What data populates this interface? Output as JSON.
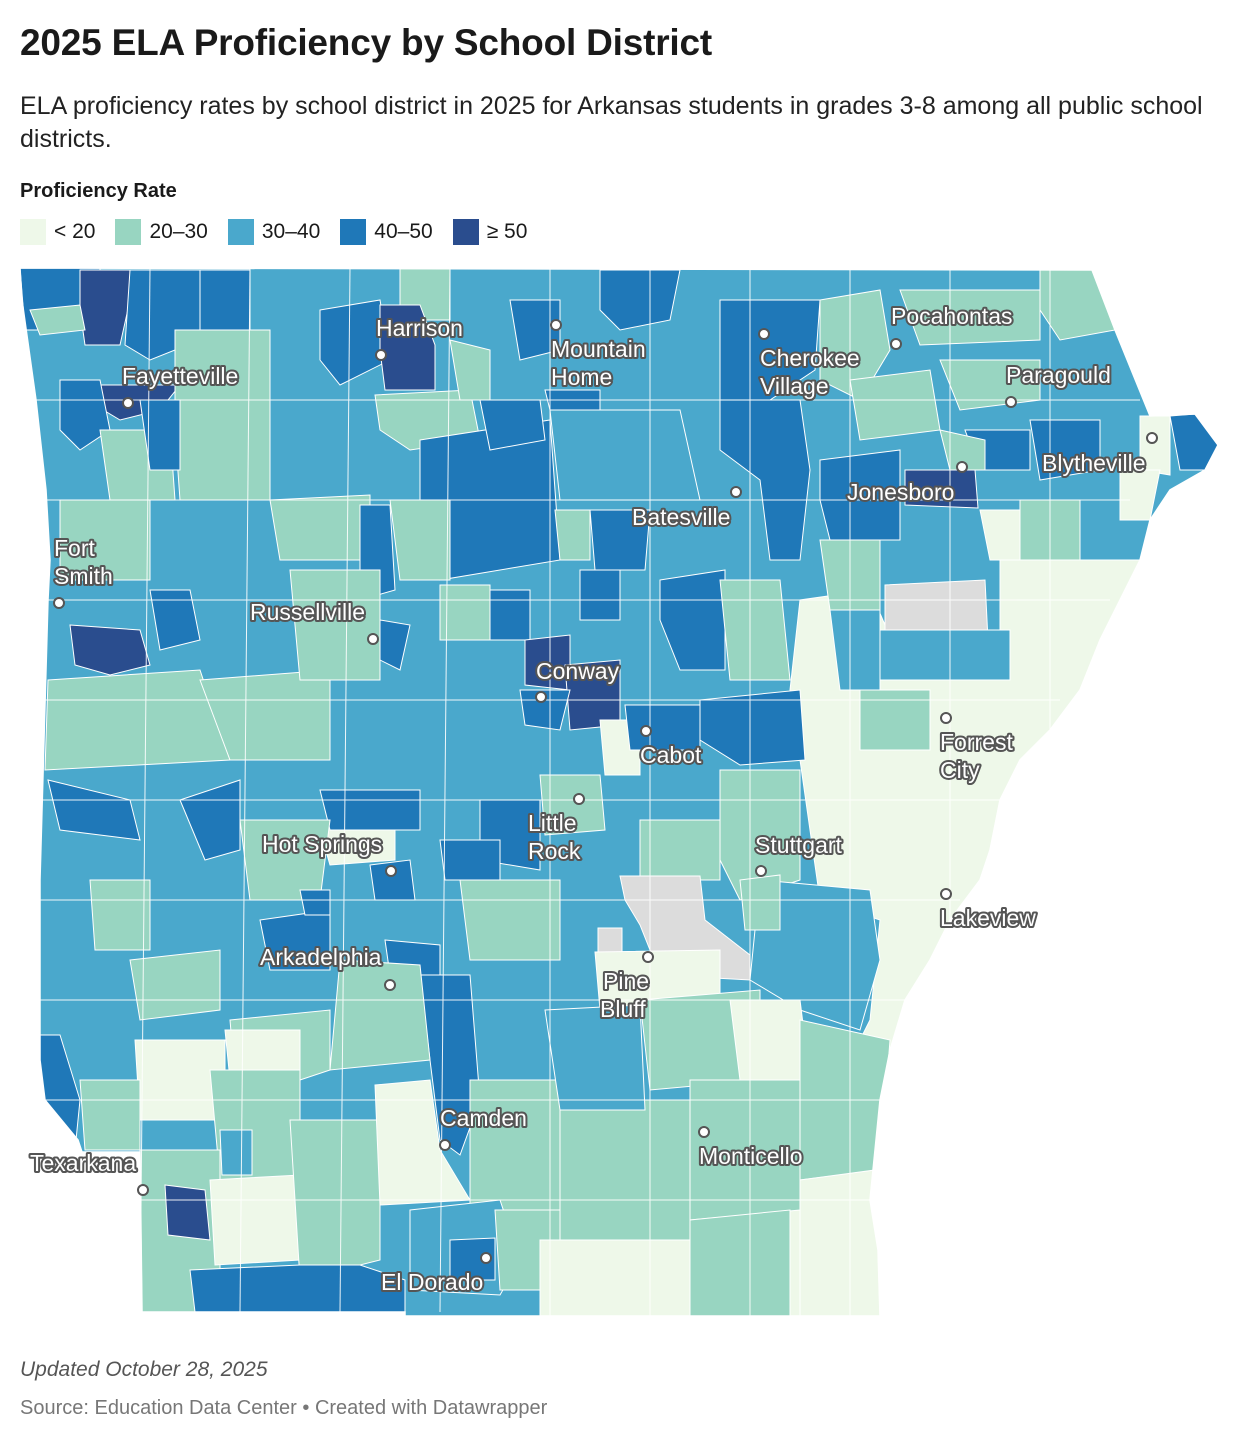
{
  "header": {
    "title": "2025 ELA Proficiency by School District",
    "subtitle": "ELA proficiency rates by school district in 2025 for Arkansas students in grades 3-8 among all public school districts."
  },
  "legend": {
    "title": "Proficiency Rate",
    "items": [
      {
        "label": "< 20",
        "color": "#eef8e9"
      },
      {
        "label": "20–30",
        "color": "#98d5c1"
      },
      {
        "label": "30–40",
        "color": "#4aa8cc"
      },
      {
        "label": "40–50",
        "color": "#1f78b8"
      },
      {
        "label": "≥ 50",
        "color": "#2a4d8e"
      }
    ],
    "no_data_color": "#dcdcdc"
  },
  "map": {
    "cities": [
      {
        "id": "harrison",
        "lines": [
          "Harrison"
        ]
      },
      {
        "id": "fayetteville",
        "lines": [
          "Fayetteville"
        ]
      },
      {
        "id": "mountain-home",
        "lines": [
          "Mountain",
          "Home"
        ]
      },
      {
        "id": "cherokee-village",
        "lines": [
          "Cherokee",
          "Village"
        ]
      },
      {
        "id": "pocahontas",
        "lines": [
          "Pocahontas"
        ]
      },
      {
        "id": "paragould",
        "lines": [
          "Paragould"
        ]
      },
      {
        "id": "blytheville",
        "lines": [
          "Blytheville"
        ]
      },
      {
        "id": "jonesboro",
        "lines": [
          "Jonesboro"
        ]
      },
      {
        "id": "batesville",
        "lines": [
          "Batesville"
        ]
      },
      {
        "id": "fort-smith",
        "lines": [
          "Fort",
          "Smith"
        ]
      },
      {
        "id": "russellville",
        "lines": [
          "Russellville"
        ]
      },
      {
        "id": "conway",
        "lines": [
          "Conway"
        ]
      },
      {
        "id": "cabot",
        "lines": [
          "Cabot"
        ]
      },
      {
        "id": "forrest-city",
        "lines": [
          "Forrest",
          "City"
        ]
      },
      {
        "id": "little-rock",
        "lines": [
          "Little",
          "Rock"
        ]
      },
      {
        "id": "hot-springs",
        "lines": [
          "Hot Springs"
        ]
      },
      {
        "id": "stuttgart",
        "lines": [
          "Stuttgart"
        ]
      },
      {
        "id": "lakeview",
        "lines": [
          "Lakeview"
        ]
      },
      {
        "id": "arkadelphia",
        "lines": [
          "Arkadelphia"
        ]
      },
      {
        "id": "pine-bluff",
        "lines": [
          "Pine",
          "Bluff"
        ]
      },
      {
        "id": "camden",
        "lines": [
          "Camden"
        ]
      },
      {
        "id": "monticello",
        "lines": [
          "Monticello"
        ]
      },
      {
        "id": "texarkana",
        "lines": [
          "Texarkana"
        ]
      },
      {
        "id": "el-dorado",
        "lines": [
          "El Dorado"
        ]
      }
    ]
  },
  "footer": {
    "updated": "Updated October 28, 2025",
    "source": "Source: Education Data Center • Created with Datawrapper"
  }
}
